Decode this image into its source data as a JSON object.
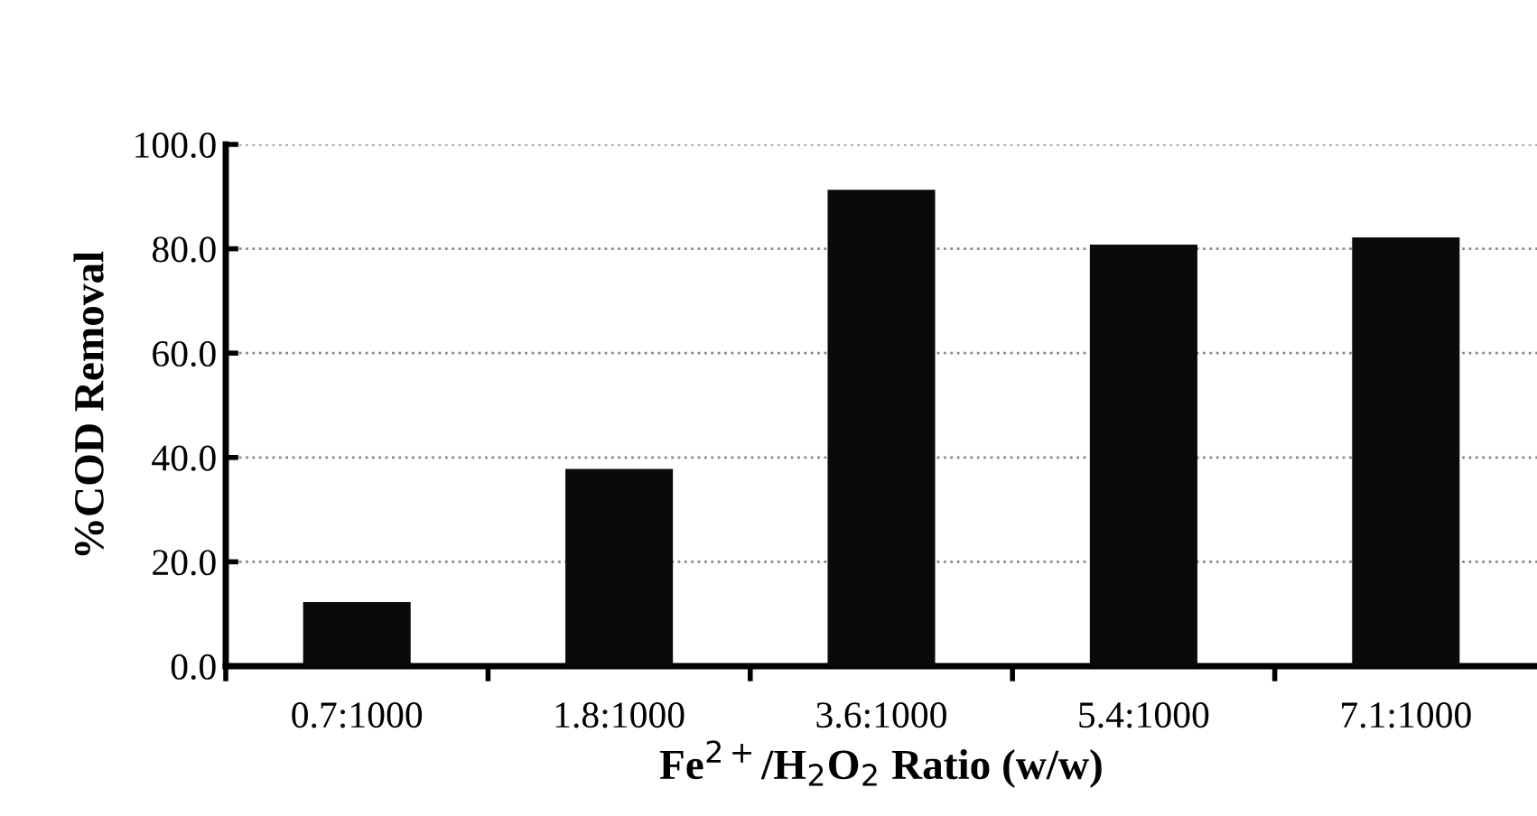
{
  "chart_data": {
    "type": "bar",
    "xlabel": "Fe$^{2+}$/H$_{2}$O$_{2}$ Ratio (w/w)",
    "ylabel": "%COD Removal",
    "categories": [
      "0.7:1000",
      "1.8:1000",
      "3.6:1000",
      "5.4:1000",
      "7.1:1000"
    ],
    "values": [
      12.3,
      37.8,
      91.3,
      80.8,
      82.2
    ],
    "color": "#0a0a0a",
    "ylim": [
      0,
      100
    ],
    "yticks": [
      {
        "value": 0,
        "label": "0.0"
      },
      {
        "value": 20,
        "label": "20.0"
      },
      {
        "value": 40,
        "label": "40.0"
      },
      {
        "value": 60,
        "label": "60.0"
      },
      {
        "value": 80,
        "label": "80.0"
      },
      {
        "value": 100,
        "label": "100.0"
      }
    ],
    "grid": "y",
    "line_style": "dotted"
  }
}
